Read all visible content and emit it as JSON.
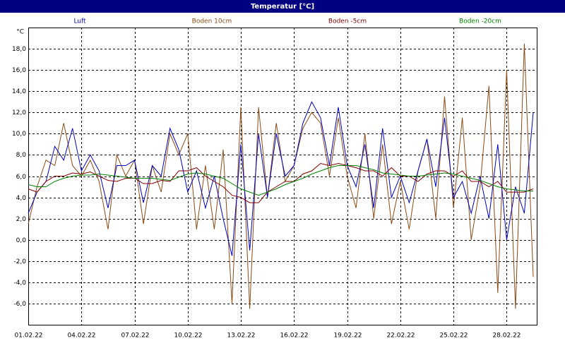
{
  "chart_data": {
    "type": "line",
    "title": "Temperatur [°C]",
    "y_unit": "°C",
    "x": [
      0,
      0.5,
      1,
      1.5,
      2,
      2.5,
      3,
      3.5,
      4,
      4.5,
      5,
      5.5,
      6,
      6.5,
      7,
      7.5,
      8,
      8.5,
      9,
      9.5,
      10,
      10.5,
      11,
      11.5,
      12,
      12.5,
      13,
      13.5,
      14,
      14.5,
      15,
      15.5,
      16,
      16.5,
      17,
      17.5,
      18,
      18.5,
      19,
      19.5,
      20,
      20.5,
      21,
      21.5,
      22,
      22.5,
      23,
      23.5,
      24,
      24.5,
      25,
      25.5,
      26,
      26.5,
      27,
      27.5,
      28,
      28.5
    ],
    "xlim": [
      0,
      28.7
    ],
    "xticks": [
      {
        "value": 0,
        "label": "01.02.22"
      },
      {
        "value": 3,
        "label": "04.02.22"
      },
      {
        "value": 6,
        "label": "07.02.22"
      },
      {
        "value": 9,
        "label": "10.02.22"
      },
      {
        "value": 12,
        "label": "13.02.22"
      },
      {
        "value": 15,
        "label": "16.02.22"
      },
      {
        "value": 18,
        "label": "19.02.22"
      },
      {
        "value": 21,
        "label": "22.02.22"
      },
      {
        "value": 24,
        "label": "25.02.22"
      },
      {
        "value": 27,
        "label": "28.02.22"
      }
    ],
    "ylim": [
      -8,
      20
    ],
    "yticks": [
      {
        "value": -6,
        "label": "-6,0"
      },
      {
        "value": -4,
        "label": "-4,0"
      },
      {
        "value": -2,
        "label": "-2,0"
      },
      {
        "value": 0,
        "label": "0,0"
      },
      {
        "value": 2,
        "label": "2,0"
      },
      {
        "value": 4,
        "label": "4,0"
      },
      {
        "value": 6,
        "label": "6,0"
      },
      {
        "value": 8,
        "label": "8,0"
      },
      {
        "value": 10,
        "label": "10,0"
      },
      {
        "value": 12,
        "label": "12,0"
      },
      {
        "value": 14,
        "label": "14,0"
      },
      {
        "value": 16,
        "label": "16,0"
      },
      {
        "value": 18,
        "label": "18,0"
      }
    ],
    "grid": true,
    "series": [
      {
        "name": "Luft",
        "color": "#0000c0",
        "values": [
          2.5,
          4.5,
          5.5,
          8.8,
          7.5,
          10.5,
          6.5,
          8,
          6.5,
          3,
          7,
          7,
          7.5,
          3.5,
          7,
          6,
          10.5,
          8.5,
          4.5,
          6.5,
          3,
          6,
          2,
          -1.5,
          9,
          -1,
          10,
          4,
          10,
          6,
          7,
          11,
          13,
          11.5,
          7,
          12.5,
          7,
          5,
          9,
          3,
          10.5,
          4,
          6,
          3.5,
          6.5,
          9.5,
          5,
          11.5,
          4,
          5.5,
          2.5,
          6,
          2,
          9,
          0,
          5,
          2.5,
          12
        ]
      },
      {
        "name": "Boden 10cm",
        "color": "#8b4a14",
        "values": [
          1.5,
          5,
          7.5,
          7,
          11,
          7,
          6,
          7.5,
          5.5,
          1,
          8,
          6,
          7.5,
          1.5,
          7,
          4.5,
          10,
          8,
          10,
          1,
          7,
          1,
          8.5,
          -6,
          12.5,
          -6.5,
          12.5,
          4,
          11,
          5.5,
          7,
          10.5,
          12,
          11,
          6,
          11.5,
          6,
          3,
          10,
          2,
          9,
          1.5,
          5.5,
          1,
          6.5,
          9.5,
          2,
          13.5,
          3,
          11.5,
          0,
          5,
          14.5,
          -5,
          16,
          -6.5,
          18.5,
          -3.5
        ]
      },
      {
        "name": "Boden -5cm",
        "color": "#800000",
        "values": [
          4.8,
          4.5,
          5.5,
          6,
          6,
          6.3,
          6.2,
          6.4,
          6,
          5.6,
          5.5,
          5.8,
          5.8,
          5.3,
          5.3,
          5.6,
          5.5,
          6.5,
          6.5,
          6.8,
          6,
          5.5,
          5,
          4.2,
          4,
          3.5,
          3.5,
          4.5,
          5,
          5.5,
          5.5,
          6.2,
          6.5,
          7.2,
          7,
          7.2,
          7,
          6.8,
          6.5,
          6.5,
          6,
          6.8,
          6,
          6,
          5.5,
          6.2,
          6.5,
          6.5,
          6,
          6.5,
          5.5,
          5.5,
          5,
          5.5,
          4.5,
          4.5,
          4.5,
          4.8
        ]
      },
      {
        "name": "Boden -20cm",
        "color": "#008000",
        "values": [
          5.2,
          5,
          5,
          5.5,
          5.8,
          6,
          6.1,
          6.1,
          6.2,
          6.1,
          6,
          5.9,
          5.8,
          5.8,
          5.8,
          5.7,
          5.6,
          5.9,
          6.2,
          6.3,
          6.2,
          6,
          5.8,
          5.3,
          4.8,
          4.5,
          4.2,
          4.5,
          4.8,
          5.2,
          5.5,
          5.8,
          6.2,
          6.5,
          6.8,
          7,
          7,
          7,
          6.8,
          6.6,
          6.3,
          6.2,
          6.1,
          6,
          6,
          6.1,
          6.2,
          6.3,
          6.2,
          6,
          5.8,
          5.6,
          5.3,
          5,
          4.8,
          4.7,
          4.6,
          4.6
        ]
      }
    ]
  }
}
